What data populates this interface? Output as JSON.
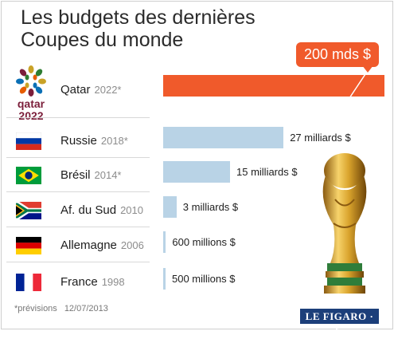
{
  "chart_data": {
    "type": "bar",
    "orientation": "horizontal",
    "title_lines": [
      "Les budgets des dernières",
      "Coupes du monde"
    ],
    "categories": [
      "Qatar",
      "Russie",
      "Brésil",
      "Af. du Sud",
      "Allemagne",
      "France"
    ],
    "years": [
      "2022*",
      "2018*",
      "2014*",
      "2010",
      "2006",
      "1998"
    ],
    "values": [
      200,
      27,
      15,
      3,
      0.6,
      0.5
    ],
    "value_labels": [
      "200 mds $",
      "27 milliards $",
      "15 milliards $",
      "3 milliards $",
      "600 millions $",
      "500 millions $"
    ],
    "unit": "milliards $",
    "colors": {
      "highlight": "#f05a2b",
      "bar": "#b9d3e6"
    },
    "footnote": "*prévisions",
    "date": "12/07/2013"
  },
  "source_label": "LE FIGARO · fr",
  "logo_text": "qatar 2022",
  "icons": [
    "flag-russia",
    "flag-brazil",
    "flag-south-africa",
    "flag-germany",
    "flag-france",
    "world-cup-trophy",
    "qatar-2022-logo"
  ]
}
